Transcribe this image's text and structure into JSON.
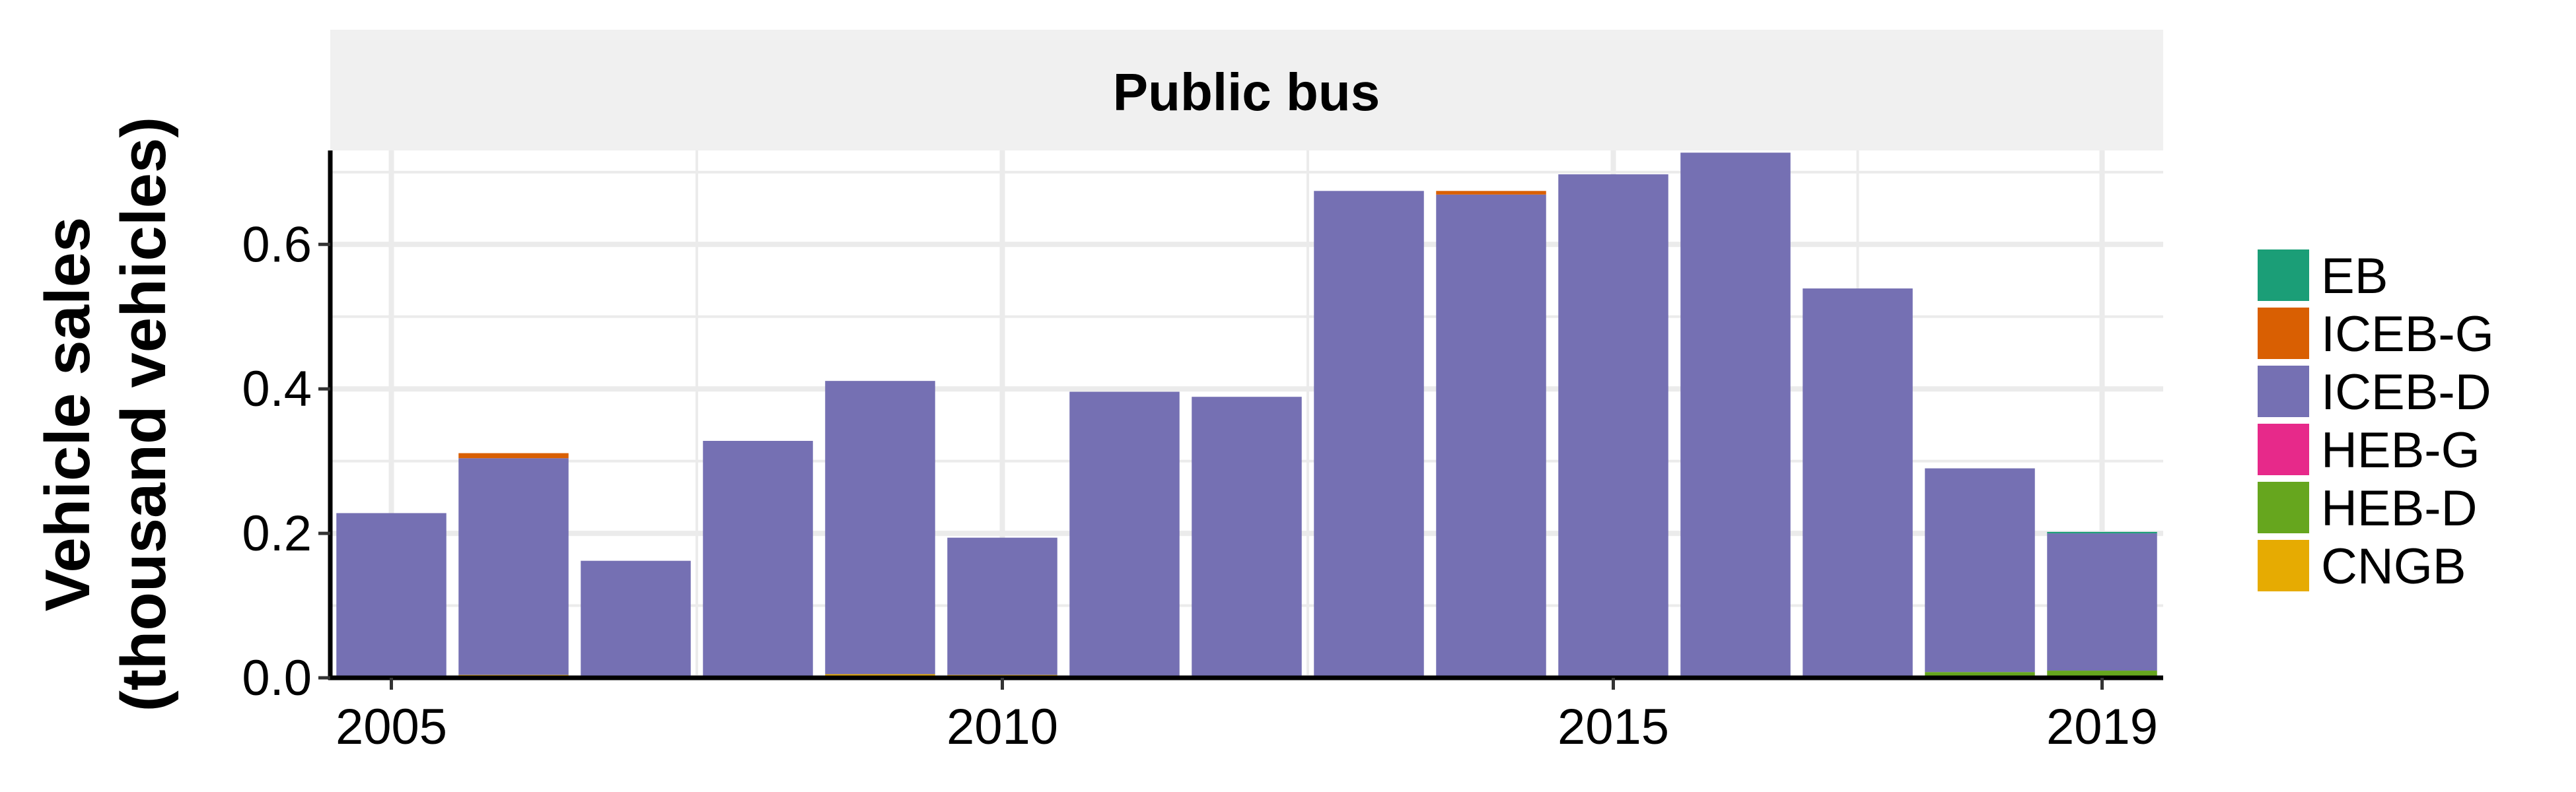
{
  "chart_data": {
    "type": "bar",
    "stacked": true,
    "panel_title": "Public bus",
    "ylabel": "Vehicle sales\n(thousand vehicles)",
    "xlabel": "",
    "ylim": [
      0,
      0.73
    ],
    "yticks": [
      0.0,
      0.2,
      0.4,
      0.6
    ],
    "ytick_labels": [
      "0.0",
      "0.2",
      "0.4",
      "0.6"
    ],
    "xlim": [
      2004.5,
      2019.5
    ],
    "xticks": [
      2005,
      2010,
      2015,
      2019
    ],
    "xtick_labels": [
      "2005",
      "2010",
      "2015",
      "2019"
    ],
    "grid": true,
    "legend_position": "right",
    "categories": [
      2005,
      2006,
      2007,
      2008,
      2009,
      2010,
      2011,
      2012,
      2013,
      2014,
      2015,
      2016,
      2017,
      2018,
      2019
    ],
    "series": [
      {
        "name": "CNGB",
        "color": "#E6AB02",
        "values": [
          0,
          0.004,
          0,
          0,
          0.005,
          0.004,
          0,
          0,
          0,
          0,
          0,
          0.002,
          0,
          0,
          0
        ]
      },
      {
        "name": "HEB-D",
        "color": "#66A61E",
        "values": [
          0,
          0,
          0,
          0,
          0,
          0,
          0,
          0,
          0,
          0,
          0,
          0,
          0,
          0.008,
          0.01
        ]
      },
      {
        "name": "HEB-G",
        "color": "#E7298A",
        "values": [
          0,
          0,
          0,
          0,
          0,
          0,
          0,
          0,
          0,
          0,
          0,
          0,
          0,
          0,
          0
        ]
      },
      {
        "name": "ICEB-D",
        "color": "#7570B3",
        "values": [
          0.228,
          0.3,
          0.162,
          0.328,
          0.406,
          0.19,
          0.396,
          0.389,
          0.674,
          0.669,
          0.697,
          0.725,
          0.539,
          0.282,
          0.19
        ]
      },
      {
        "name": "ICEB-G",
        "color": "#D95F02",
        "values": [
          0,
          0.007,
          0,
          0,
          0,
          0,
          0,
          0,
          0,
          0.005,
          0,
          0,
          0,
          0,
          0
        ]
      },
      {
        "name": "EB",
        "color": "#1B9E77",
        "values": [
          0,
          0,
          0,
          0,
          0,
          0,
          0,
          0,
          0,
          0,
          0,
          0,
          0,
          0,
          0.002
        ]
      }
    ],
    "legend_order": [
      "EB",
      "ICEB-G",
      "ICEB-D",
      "HEB-G",
      "HEB-D",
      "CNGB"
    ],
    "colors": {
      "panel_background": "#FFFFFF",
      "strip_background": "#F0F0F0",
      "grid": "#EBEBEB",
      "axis": "#000000"
    }
  }
}
